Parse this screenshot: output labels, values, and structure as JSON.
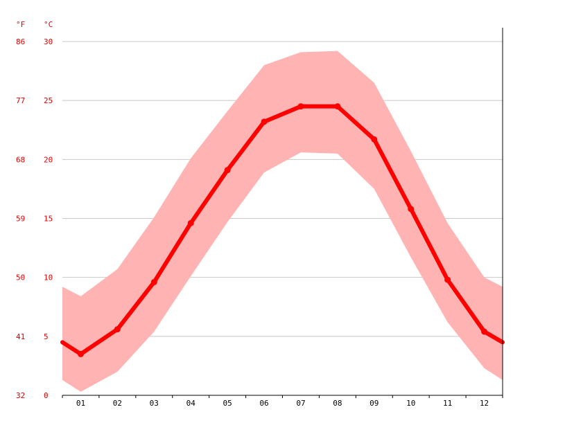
{
  "chart_data": {
    "type": "area",
    "title": "",
    "xlabel": "",
    "ylabel": "",
    "units": {
      "fahrenheit": "°F",
      "celsius": "°C"
    },
    "categories": [
      "01",
      "02",
      "03",
      "04",
      "05",
      "06",
      "07",
      "08",
      "09",
      "10",
      "11",
      "12"
    ],
    "ylim_c": [
      0,
      30
    ],
    "yticks_c": [
      "0",
      "5",
      "10",
      "15",
      "20",
      "25",
      "30"
    ],
    "yticks_f": [
      "32",
      "41",
      "50",
      "59",
      "68",
      "77",
      "86"
    ],
    "grid": true,
    "colors": {
      "line": "#ff0000",
      "band": "#ffb3b3",
      "ticks_left": "#e00000"
    },
    "series": [
      {
        "values": [
          3.5,
          5.6,
          9.6,
          14.6,
          19.1,
          23.2,
          24.5,
          24.5,
          21.7,
          15.8,
          9.8,
          5.4
        ]
      }
    ],
    "band_upper": [
      8.4,
      10.7,
      15.1,
      20.1,
      24.1,
      28.0,
      29.1,
      29.2,
      26.5,
      20.7,
      14.6,
      10.0
    ],
    "band_lower": [
      0.3,
      2.0,
      5.4,
      10.1,
      14.7,
      18.9,
      20.6,
      20.5,
      17.5,
      11.7,
      6.2,
      2.3
    ],
    "edge_values": {
      "start": 4.5,
      "end": 4.5,
      "band_start_upper": 9.2,
      "band_start_lower": 1.3,
      "band_end_upper": 9.2,
      "band_end_lower": 1.3
    }
  }
}
